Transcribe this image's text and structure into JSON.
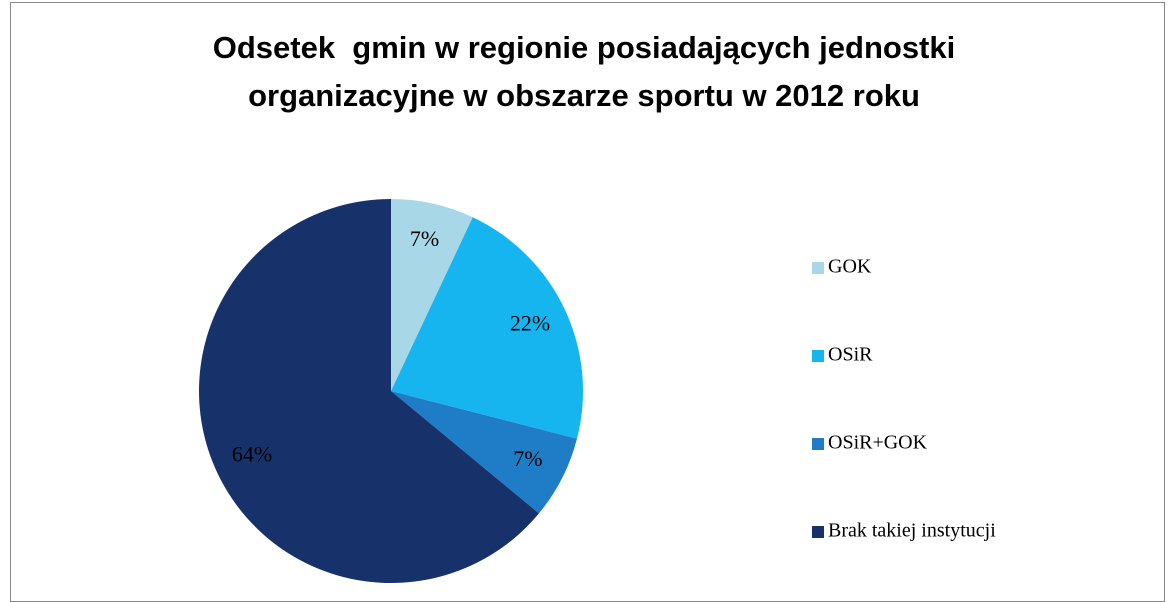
{
  "chart_data": {
    "type": "pie",
    "title": "Odsetek  gmin w regionie posiadających jednostki\norganizacyjne w obszarze sportu w 2012 roku",
    "categories": [
      "GOK",
      "OSiR",
      "OSiR+GOK",
      "Brak takiej instytucji"
    ],
    "values": [
      7,
      22,
      7,
      64
    ],
    "value_labels": [
      "7%",
      "22%",
      "7%",
      "64%"
    ],
    "colors": [
      "#a8d8e8",
      "#17b5ef",
      "#1f7cc6",
      "#17326a"
    ],
    "legend": "right"
  }
}
